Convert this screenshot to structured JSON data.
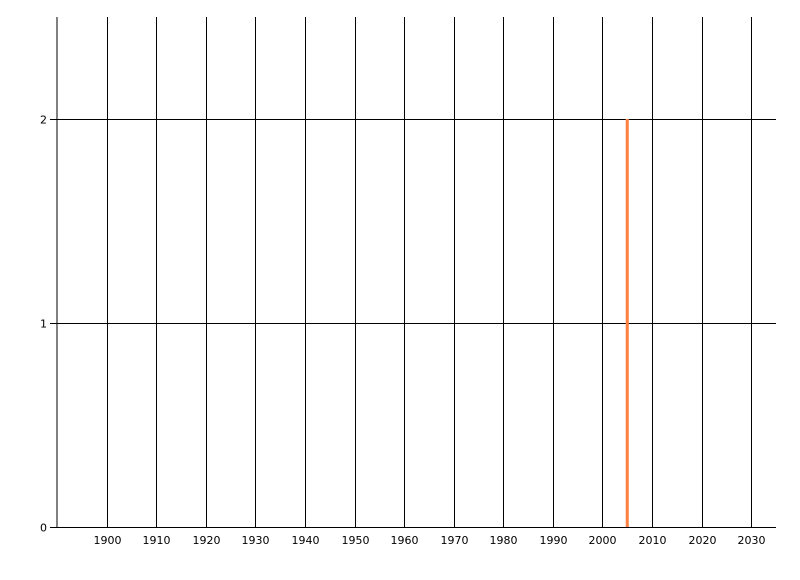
{
  "chart_data": {
    "type": "bar",
    "title": "",
    "xlabel": "",
    "ylabel": "",
    "xlim": [
      1890,
      2035
    ],
    "ylim": [
      0,
      2.5
    ],
    "x_ticks": [
      1900,
      1910,
      1920,
      1930,
      1940,
      1950,
      1960,
      1970,
      1980,
      1990,
      2000,
      2010,
      2020,
      2030
    ],
    "y_ticks": [
      0,
      1,
      2
    ],
    "grid": true,
    "series": [
      {
        "x": [
          2005
        ],
        "values": [
          2
        ],
        "color": "#FF8040"
      }
    ],
    "colors": {
      "grid": "#000000",
      "bar": "#FF8040"
    }
  }
}
